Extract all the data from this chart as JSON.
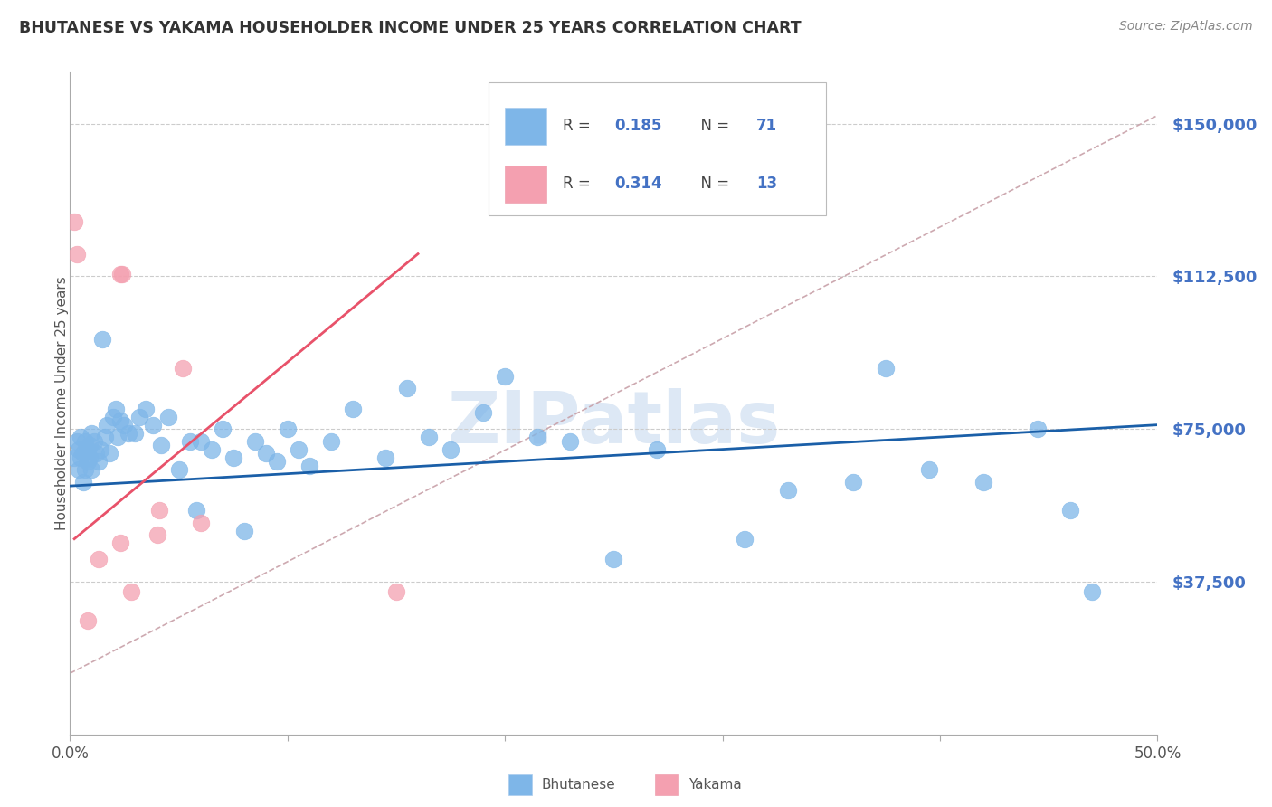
{
  "title": "BHUTANESE VS YAKAMA HOUSEHOLDER INCOME UNDER 25 YEARS CORRELATION CHART",
  "source": "Source: ZipAtlas.com",
  "ylabel": "Householder Income Under 25 years",
  "ytick_labels": [
    "$150,000",
    "$112,500",
    "$75,000",
    "$37,500"
  ],
  "ytick_values": [
    150000,
    112500,
    75000,
    37500
  ],
  "ymin": 0,
  "ymax": 162500,
  "xmin": 0.0,
  "xmax": 0.5,
  "xtick_positions": [
    0.0,
    0.1,
    0.2,
    0.3,
    0.4,
    0.5
  ],
  "xtick_labels": [
    "0.0%",
    "",
    "",
    "",
    "",
    "50.0%"
  ],
  "legend_bhutanese": "Bhutanese",
  "legend_yakama": "Yakama",
  "r_bhutanese": "0.185",
  "n_bhutanese": "71",
  "r_yakama": "0.314",
  "n_yakama": "13",
  "color_bhutanese": "#7EB6E8",
  "color_yakama": "#F4A0B0",
  "color_line_bhutanese": "#1A5FA8",
  "color_line_yakama": "#E8526A",
  "color_diag": "#C8A0A8",
  "color_ytick": "#4472C4",
  "color_title": "#333333",
  "scatter_bhutanese_x": [
    0.002,
    0.003,
    0.004,
    0.004,
    0.005,
    0.005,
    0.006,
    0.006,
    0.007,
    0.007,
    0.008,
    0.008,
    0.009,
    0.009,
    0.01,
    0.01,
    0.011,
    0.012,
    0.013,
    0.014,
    0.015,
    0.016,
    0.017,
    0.018,
    0.02,
    0.021,
    0.022,
    0.023,
    0.025,
    0.027,
    0.03,
    0.032,
    0.035,
    0.038,
    0.042,
    0.045,
    0.05,
    0.055,
    0.058,
    0.06,
    0.065,
    0.07,
    0.075,
    0.08,
    0.085,
    0.09,
    0.095,
    0.1,
    0.105,
    0.11,
    0.12,
    0.13,
    0.145,
    0.155,
    0.165,
    0.175,
    0.19,
    0.2,
    0.215,
    0.23,
    0.25,
    0.27,
    0.31,
    0.33,
    0.36,
    0.375,
    0.395,
    0.42,
    0.445,
    0.46,
    0.47
  ],
  "scatter_bhutanese_y": [
    68000,
    72000,
    65000,
    70000,
    68000,
    73000,
    62000,
    69000,
    65000,
    72000,
    70000,
    67000,
    68000,
    71000,
    65000,
    74000,
    72000,
    69000,
    67000,
    70000,
    97000,
    73000,
    76000,
    69000,
    78000,
    80000,
    73000,
    77000,
    76000,
    74000,
    74000,
    78000,
    80000,
    76000,
    71000,
    78000,
    65000,
    72000,
    55000,
    72000,
    70000,
    75000,
    68000,
    50000,
    72000,
    69000,
    67000,
    75000,
    70000,
    66000,
    72000,
    80000,
    68000,
    85000,
    73000,
    70000,
    79000,
    88000,
    73000,
    72000,
    43000,
    70000,
    48000,
    60000,
    62000,
    90000,
    65000,
    62000,
    75000,
    55000,
    35000
  ],
  "scatter_yakama_x": [
    0.002,
    0.003,
    0.023,
    0.024,
    0.013,
    0.04,
    0.041,
    0.052,
    0.06,
    0.023,
    0.028,
    0.15,
    0.008
  ],
  "scatter_yakama_y": [
    126000,
    118000,
    113000,
    113000,
    43000,
    49000,
    55000,
    90000,
    52000,
    47000,
    35000,
    35000,
    28000
  ],
  "bhut_line_x": [
    0.0,
    0.5
  ],
  "bhut_line_y": [
    61000,
    76000
  ],
  "yak_line_x": [
    0.002,
    0.16
  ],
  "yak_line_y": [
    48000,
    118000
  ],
  "diag_line_x": [
    0.0,
    0.5
  ],
  "diag_line_y": [
    15000,
    152000
  ],
  "background_color": "#FFFFFF",
  "watermark": "ZIPatlas",
  "watermark_color": "#dde8f5",
  "grid_color": "#cccccc",
  "spine_color": "#aaaaaa"
}
